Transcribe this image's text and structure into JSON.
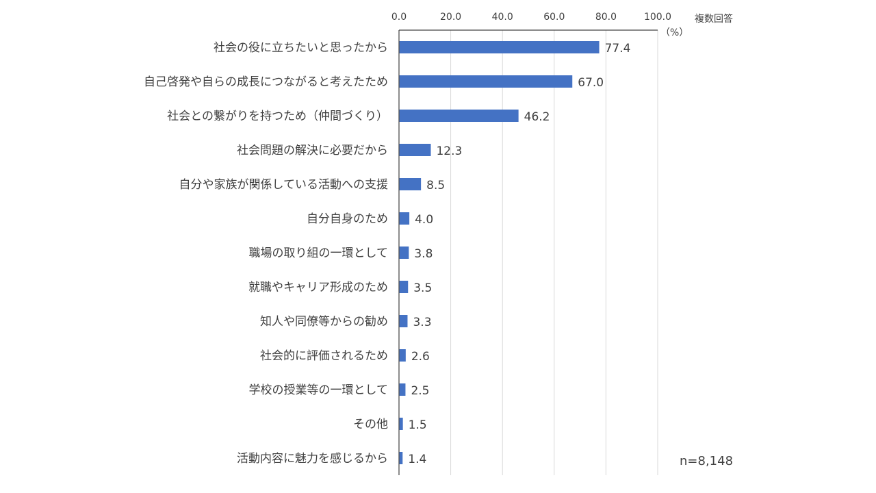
{
  "chart_data": {
    "type": "bar",
    "orientation": "horizontal",
    "categories": [
      "社会の役に立ちたいと思ったから",
      "自己啓発や自らの成長につながると考えたため",
      "社会との繋がりを持つため（仲間づくり）",
      "社会問題の解決に必要だから",
      "自分や家族が関係している活動への支援",
      "自分自身のため",
      "職場の取り組の一環として",
      "就職やキャリア形成のため",
      "知人や同僚等からの勧め",
      "社会的に評価されるため",
      "学校の授業等の一環として",
      "その他",
      "活動内容に魅力を感じるから"
    ],
    "values": [
      77.4,
      67.0,
      46.2,
      12.3,
      8.5,
      4.0,
      3.8,
      3.5,
      3.3,
      2.6,
      2.5,
      1.5,
      1.4
    ],
    "value_labels": [
      "77.4",
      "67.0",
      "46.2",
      "12.3",
      "8.5",
      "4.0",
      "3.8",
      "3.5",
      "3.3",
      "2.6",
      "2.5",
      "1.5",
      "1.4"
    ],
    "xlim": [
      0,
      100
    ],
    "xticks": [
      "0.0",
      "20.0",
      "40.0",
      "60.0",
      "80.0",
      "100.0"
    ],
    "xtick_values": [
      0,
      20,
      40,
      60,
      80,
      100
    ],
    "unit_label": "（%）",
    "note": "複数回答",
    "sample_size": "n=8,148",
    "x_axis_position": "top",
    "grid": true,
    "bar_color": "#4472c4"
  }
}
